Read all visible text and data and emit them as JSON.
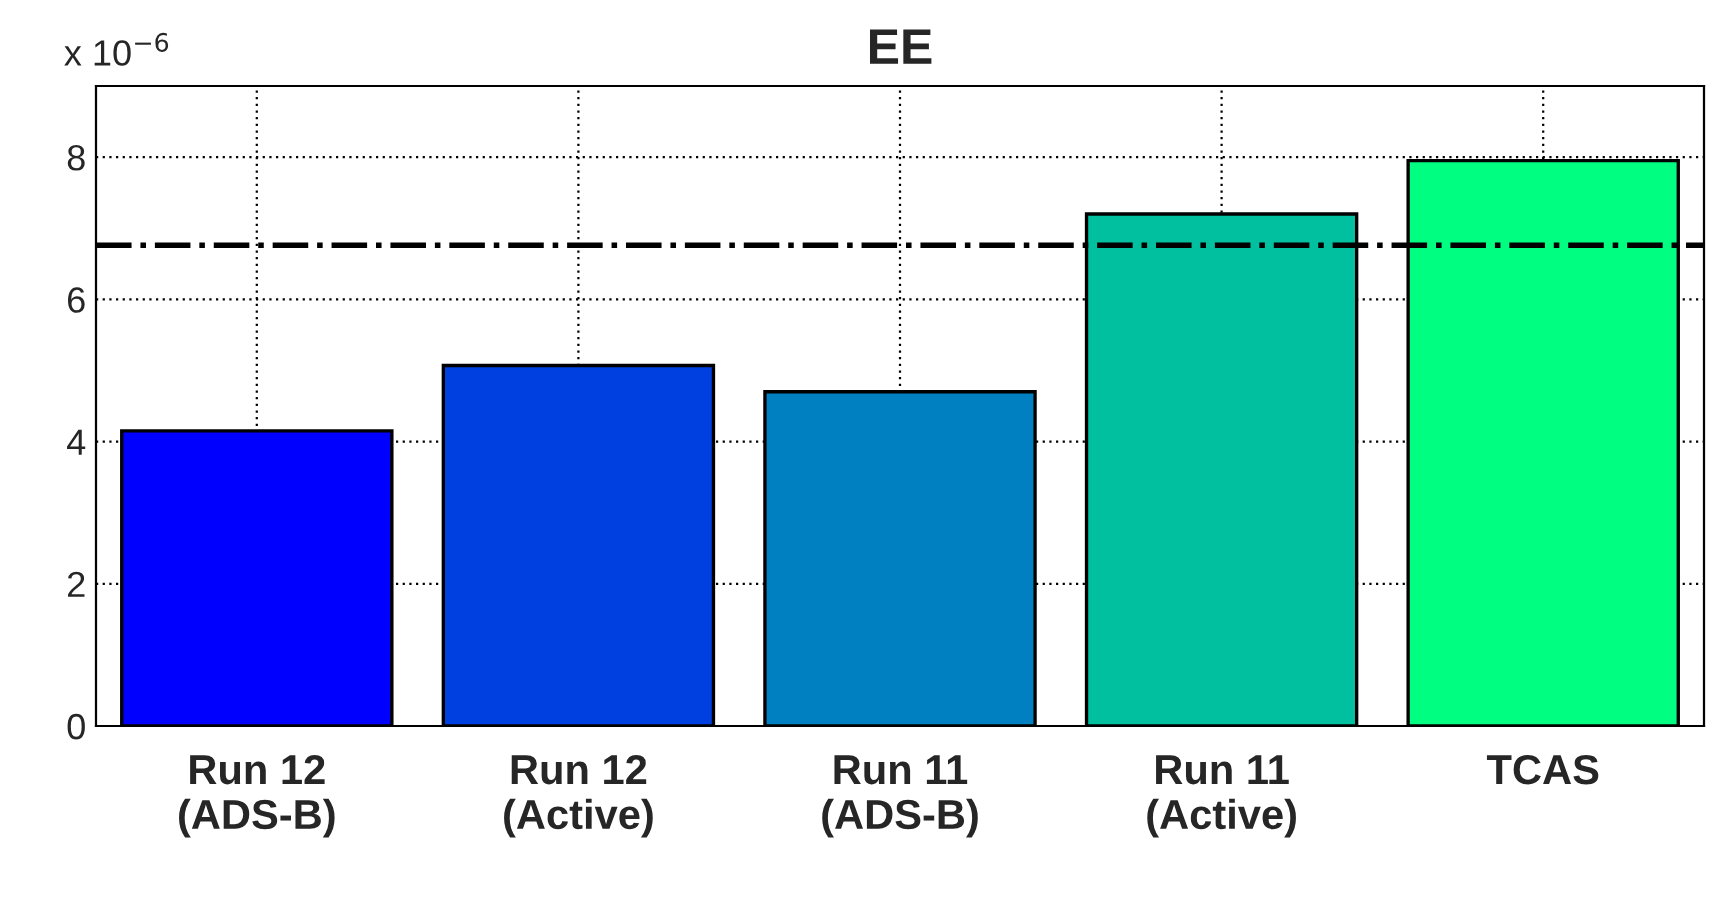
{
  "chart_data": {
    "type": "bar",
    "title": "EE",
    "annotations": [
      "x 10$^{−6}$"
    ],
    "categories": [
      "Run 12\n(ADS-B)",
      "Run 12\n(Active)",
      "Run 11\n(ADS-B)",
      "Run 11\n(Active)",
      "TCAS"
    ],
    "values": [
      4.15,
      5.07,
      4.7,
      7.2,
      7.95
    ],
    "colors": [
      "#0000ff",
      "#0040e0",
      "#0080c0",
      "#00c0a0",
      "#00ff80"
    ],
    "ylim": [
      0,
      9
    ],
    "yticks": [
      0,
      2,
      4,
      6,
      8
    ],
    "grid": true,
    "ref_lines": [
      {
        "axis": "y",
        "value": 6.76,
        "line_style": "dashdot",
        "color": "#000000"
      }
    ]
  }
}
